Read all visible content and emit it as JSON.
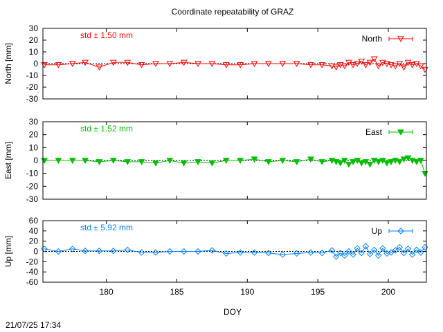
{
  "title": "Coordinate repeatability of GRAZ",
  "timestamp": "21/07/25 17:34",
  "xlabel": "DOY",
  "x_ticks": [
    180,
    185,
    190,
    195,
    200
  ],
  "xlim": [
    175.5,
    202.7
  ],
  "chart_data": [
    {
      "type": "line",
      "series": [
        {
          "name": "North",
          "color": "#ff0000",
          "marker": "triangle-down-open",
          "x": [
            175.6,
            176.6,
            177.6,
            178.5,
            179.5,
            180.5,
            181.5,
            182.5,
            183.5,
            184.5,
            185.5,
            186.5,
            187.5,
            188.5,
            189.5,
            190.5,
            191.5,
            192.5,
            193.5,
            194.5,
            195.3,
            196.0,
            196.3,
            196.6,
            196.9,
            197.2,
            197.5,
            197.8,
            198.1,
            198.4,
            198.7,
            199.0,
            199.3,
            199.6,
            199.9,
            200.2,
            200.5,
            200.8,
            201.1,
            201.4,
            201.7,
            202.0,
            202.3,
            202.6
          ],
          "values": [
            -1,
            -1,
            0,
            1,
            -3,
            1,
            1,
            -1,
            0,
            0,
            1,
            0,
            0,
            -1,
            -1,
            0,
            0,
            0,
            0,
            -1,
            -1,
            -2,
            -3,
            -1,
            -2,
            1,
            -1,
            0,
            2,
            -1,
            1,
            4,
            -2,
            1,
            0,
            -1,
            -2,
            0,
            -3,
            1,
            -1,
            0,
            -2,
            -5
          ]
        }
      ],
      "ylabel": "North [mm]",
      "y_ticks": [
        30,
        20,
        10,
        0,
        -10,
        -20,
        -30
      ],
      "ylim": [
        -30,
        30
      ],
      "annotation": "std ± 1.50 mm",
      "legend_position": "top-right"
    },
    {
      "type": "line",
      "series": [
        {
          "name": "East",
          "color": "#00c000",
          "marker": "triangle-down-filled",
          "x": [
            175.6,
            176.6,
            177.6,
            178.5,
            179.5,
            180.5,
            181.5,
            182.5,
            183.5,
            184.5,
            185.5,
            186.5,
            187.5,
            188.5,
            189.5,
            190.5,
            191.5,
            192.5,
            193.5,
            194.5,
            195.3,
            196.0,
            196.3,
            196.6,
            196.9,
            197.2,
            197.5,
            197.8,
            198.1,
            198.4,
            198.7,
            199.0,
            199.3,
            199.6,
            199.9,
            200.2,
            200.5,
            200.8,
            201.1,
            201.4,
            201.7,
            202.0,
            202.3,
            202.6
          ],
          "values": [
            0,
            0,
            0,
            0,
            -1,
            0,
            -1,
            -1,
            -2,
            0,
            -2,
            -1,
            -2,
            0,
            0,
            1,
            -1,
            0,
            -1,
            1,
            -1,
            0,
            -1,
            -2,
            0,
            -3,
            -1,
            0,
            -2,
            -1,
            -3,
            0,
            -1,
            0,
            -2,
            -1,
            0,
            -1,
            1,
            2,
            0,
            -1,
            0,
            -10
          ]
        }
      ],
      "ylabel": "East [mm]",
      "y_ticks": [
        30,
        20,
        10,
        0,
        -10,
        -20,
        -30
      ],
      "ylim": [
        -30,
        30
      ],
      "annotation": "std ± 1.52 mm",
      "legend_position": "top-right"
    },
    {
      "type": "line",
      "series": [
        {
          "name": "Up",
          "color": "#0080ff",
          "marker": "diamond-open",
          "x": [
            175.6,
            176.6,
            177.6,
            178.5,
            179.5,
            180.5,
            181.5,
            182.5,
            183.5,
            184.5,
            185.5,
            186.5,
            187.5,
            188.5,
            189.5,
            190.5,
            191.5,
            192.5,
            193.5,
            194.5,
            195.3,
            196.0,
            196.3,
            196.6,
            196.9,
            197.2,
            197.5,
            197.8,
            198.1,
            198.4,
            198.7,
            199.0,
            199.3,
            199.6,
            199.9,
            200.2,
            200.5,
            200.8,
            201.1,
            201.4,
            201.7,
            202.0,
            202.3,
            202.6
          ],
          "values": [
            5,
            0,
            5,
            1,
            1,
            1,
            3,
            -2,
            -2,
            0,
            0,
            0,
            2,
            -4,
            -2,
            -2,
            -3,
            -6,
            -4,
            -2,
            -3,
            2,
            -10,
            -3,
            -8,
            0,
            -6,
            6,
            -3,
            10,
            -5,
            3,
            -8,
            6,
            -4,
            -2,
            2,
            8,
            -3,
            5,
            -6,
            3,
            -2,
            8
          ]
        }
      ],
      "ylabel": "Up [mm]",
      "y_ticks": [
        60,
        40,
        20,
        0,
        -20,
        -40,
        -60
      ],
      "ylim": [
        -60,
        60
      ],
      "annotation": "std ± 5.92 mm",
      "legend_position": "top-right"
    }
  ]
}
